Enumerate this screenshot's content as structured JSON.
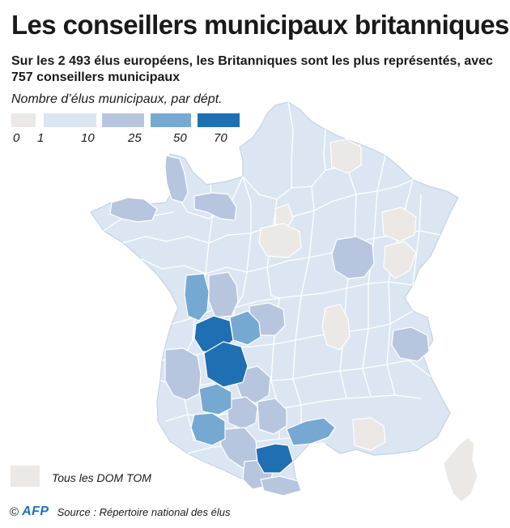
{
  "title": "Les conseillers municipaux britanniques",
  "subtitle": "Sur les 2 493 élus européens, les Britanniques sont les plus représentés, avec 757 conseillers municipaux",
  "legend": {
    "title": "Nombre d’élus municipaux, par dépt.",
    "classes": [
      {
        "color": "#ece8e6"
      },
      {
        "color": "#dbe6f2"
      },
      {
        "color": "#b7c5df"
      },
      {
        "color": "#76a9d2"
      },
      {
        "color": "#1f6fb3"
      }
    ],
    "ticks": [
      "0",
      "1",
      "10",
      "25",
      "50",
      "70"
    ]
  },
  "domtom": {
    "color": "#ece8e6",
    "label": "Tous les DOM TOM"
  },
  "footer": {
    "copyright": "©",
    "agency": "AFP",
    "source": "Source : Répertoire national des élus"
  },
  "map": {
    "base_color": "#dbe6f2",
    "border_color": "#ffffff",
    "land_border_color": "#c3d3e6"
  }
}
